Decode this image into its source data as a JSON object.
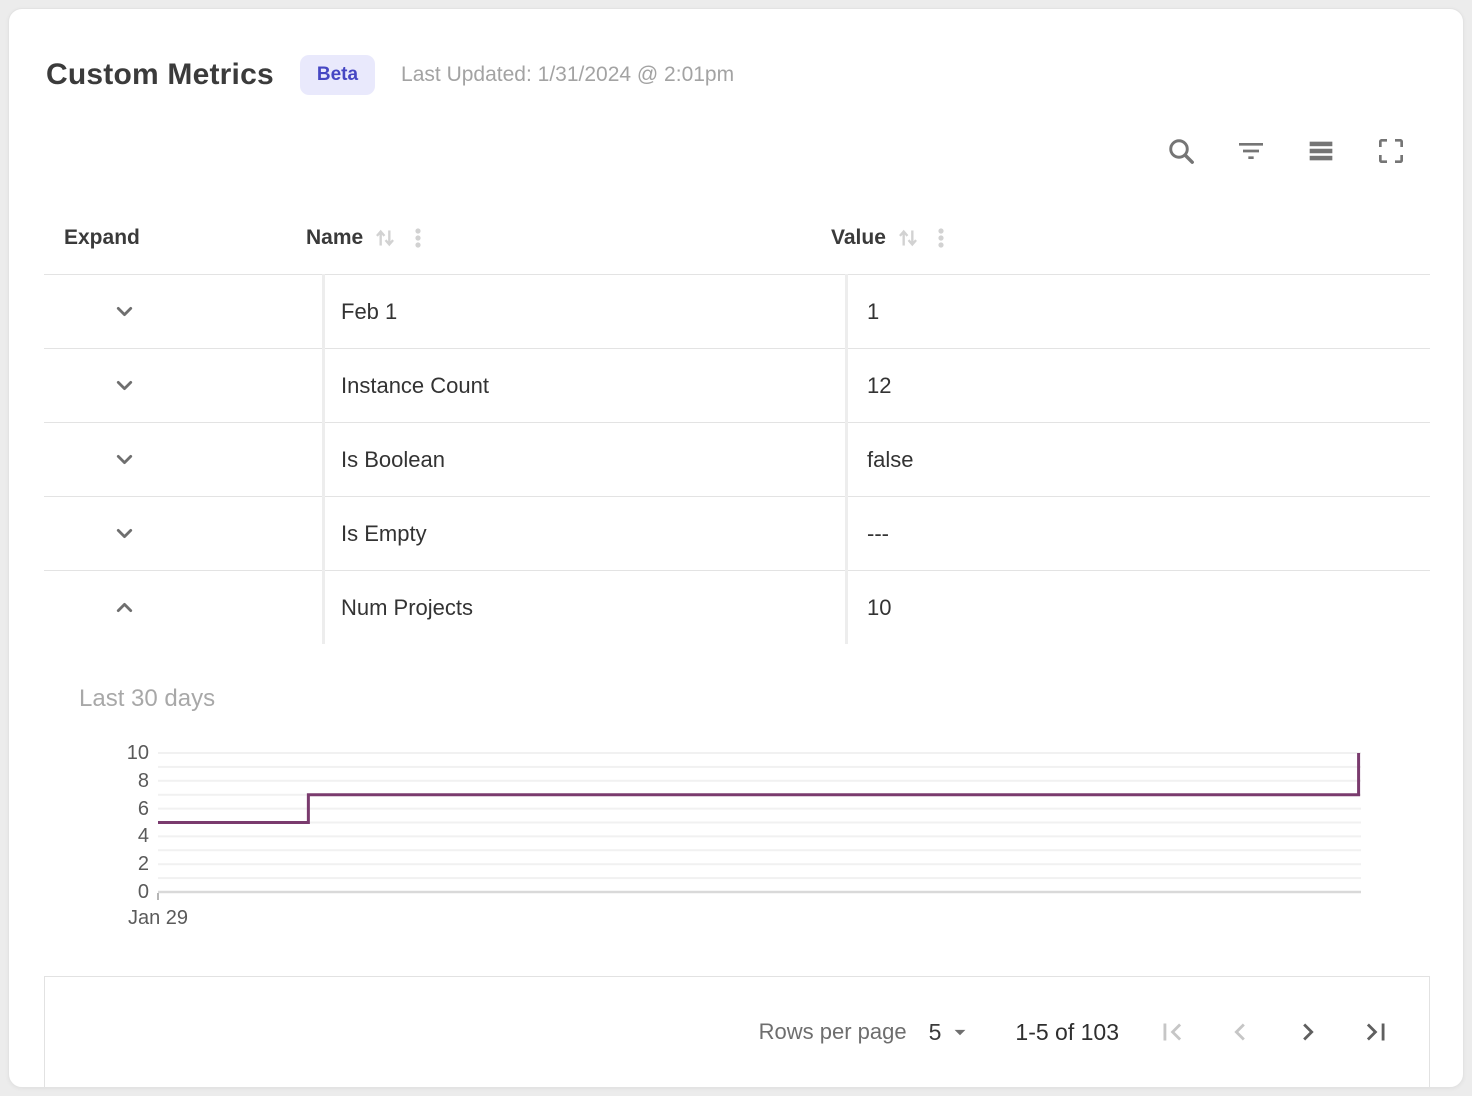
{
  "header": {
    "title": "Custom Metrics",
    "badge": "Beta",
    "last_updated": "Last Updated: 1/31/2024 @ 2:01pm"
  },
  "toolbar": {
    "icons": [
      "search",
      "filter",
      "density",
      "fullscreen"
    ],
    "icon_color": "#757575"
  },
  "table": {
    "columns": [
      {
        "label": "Expand",
        "sortable": false
      },
      {
        "label": "Name",
        "sortable": true
      },
      {
        "label": "Value",
        "sortable": true
      }
    ],
    "rows": [
      {
        "name": "Feb 1",
        "value": "1",
        "expanded": false
      },
      {
        "name": "Instance Count",
        "value": "12",
        "expanded": false
      },
      {
        "name": "Is Boolean",
        "value": "false",
        "expanded": false
      },
      {
        "name": "Is Empty",
        "value": "---",
        "expanded": false
      },
      {
        "name": "Num Projects",
        "value": "10",
        "expanded": true
      }
    ]
  },
  "chart_data": {
    "type": "line",
    "step": true,
    "title": "Last 30 days",
    "series": [
      {
        "name": "Num Projects",
        "points_x_fraction": [
          [
            0,
            5
          ],
          [
            0.125,
            5
          ],
          [
            0.125,
            7
          ],
          [
            0.998,
            7
          ],
          [
            0.998,
            10
          ]
        ]
      }
    ],
    "ylim": [
      0,
      10
    ],
    "y_grid_step": 1,
    "y_tick_labels": [
      0,
      2,
      4,
      6,
      8,
      10
    ],
    "x_tick_labels": [
      {
        "fraction": 0,
        "label": "Jan 29"
      }
    ],
    "line_color": "#7a3b6e",
    "grid_color": "#f1f1f1",
    "axis_color": "#d9d9d9",
    "legend": "none",
    "grid": true
  },
  "footer": {
    "rows_per_page_label": "Rows per page",
    "rows_per_page_value": "5",
    "range_label": "1-5 of 103"
  }
}
